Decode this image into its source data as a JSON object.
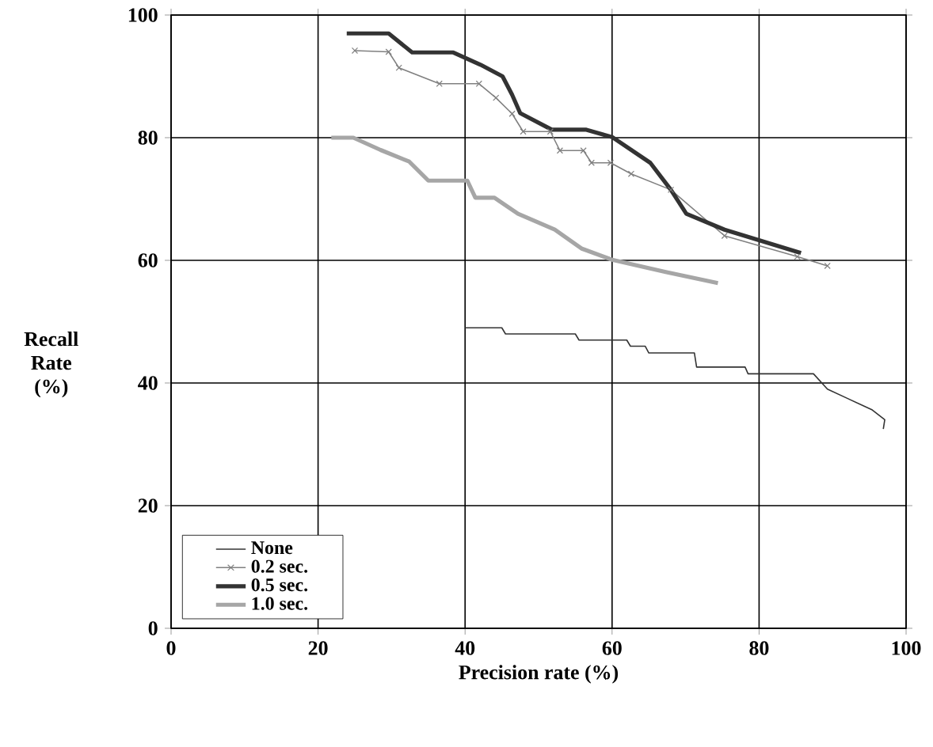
{
  "chart_data": {
    "type": "line",
    "xlabel": "Precision rate (%)",
    "ylabel": "Recall Rate (%)",
    "xlim": [
      0,
      100
    ],
    "ylim": [
      0,
      100
    ],
    "xticks": [
      0,
      20,
      40,
      60,
      80,
      100
    ],
    "yticks": [
      0,
      20,
      40,
      60,
      80,
      100
    ],
    "grid": true,
    "legend": "bottom left",
    "line_style": "solid",
    "series": [
      {
        "name": "None",
        "color": "#333333",
        "marker": "none",
        "x": [
          40,
          45,
          45.5,
          55,
          55.5,
          62,
          62.5,
          64.5,
          65,
          71.2,
          71.5,
          78.1,
          78.5,
          87.4,
          89.3,
          92,
          95.4,
          97.1,
          96.9
        ],
        "values": [
          49,
          49,
          48,
          48,
          47,
          47,
          46,
          46,
          44.9,
          44.9,
          42.6,
          42.6,
          41.5,
          41.5,
          39,
          37.5,
          35.6,
          34,
          32.5
        ]
      },
      {
        "name": "0.2 sec.",
        "color": "#808080",
        "marker": "cross",
        "x": [
          25,
          29.6,
          31,
          36.5,
          41.9,
          44.2,
          46.4,
          47.9,
          51.6,
          52.9,
          56.1,
          57.2,
          59.8,
          62.6,
          68,
          75.3,
          85.2,
          89.3
        ],
        "values": [
          94.2,
          94,
          91.4,
          88.8,
          88.8,
          86.5,
          83.9,
          81,
          81,
          77.9,
          77.9,
          75.9,
          75.9,
          74.1,
          71.5,
          64,
          60.6,
          59.1
        ]
      },
      {
        "name": "0.5 sec.",
        "color": "#333333",
        "marker": "none",
        "x": [
          23.9,
          29.6,
          32.8,
          38.4,
          42.1,
          45.1,
          46.4,
          47.5,
          51.8,
          56.5,
          60,
          65.2,
          68,
          70.1,
          75.3,
          85.7
        ],
        "values": [
          97,
          97,
          93.9,
          93.9,
          91.9,
          90,
          87,
          84,
          81.3,
          81.3,
          80.1,
          75.9,
          71.5,
          67.6,
          65,
          61.2
        ]
      },
      {
        "name": "1.0 sec.",
        "color": "#a6a6a6",
        "marker": "none",
        "x": [
          21.8,
          24.8,
          28.5,
          32.4,
          35,
          40.3,
          41.4,
          44,
          47.2,
          52.2,
          55.9,
          60,
          67.3,
          74.4
        ],
        "values": [
          80,
          80,
          78,
          76.1,
          73,
          73,
          70.2,
          70.2,
          67.6,
          65,
          61.9,
          60.1,
          58.1,
          56.3
        ]
      }
    ]
  }
}
